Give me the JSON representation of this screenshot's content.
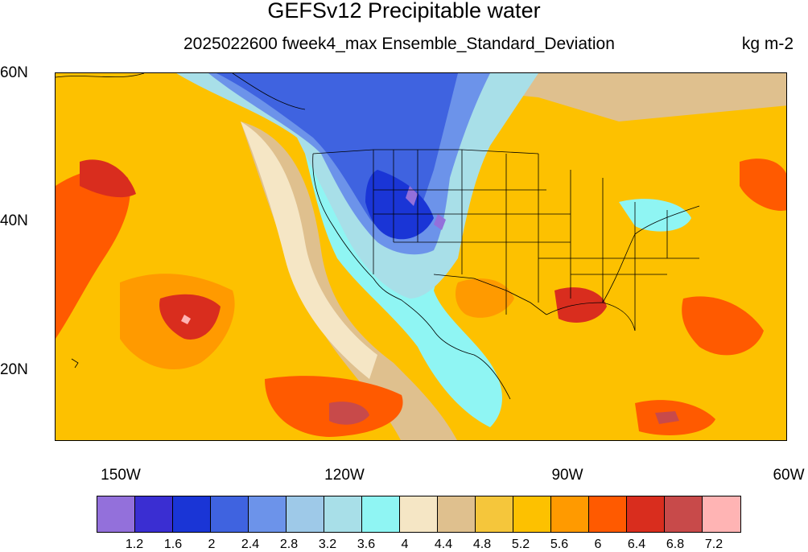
{
  "header": {
    "title": "GEFSv12 Precipitable water",
    "subtitle": "2025022600 fweek4_max Ensemble_Standard_Deviation",
    "units": "kg m-2"
  },
  "axes": {
    "lat_labels": [
      "60N",
      "40N",
      "20N"
    ],
    "lon_labels": [
      "150W",
      "120W",
      "90W",
      "60W"
    ]
  },
  "colorbar": {
    "colors": [
      "#9370db",
      "#3a2ed2",
      "#1a35d6",
      "#3f63e0",
      "#6c93ea",
      "#9ec9e8",
      "#a8dfe8",
      "#8ff5f3",
      "#f5e6c5",
      "#dfc08e",
      "#f5c63b",
      "#fdc100",
      "#ff9a00",
      "#ff5a00",
      "#d92d1e",
      "#c84a4a",
      "#ffb4b4"
    ],
    "labels": [
      "1.2",
      "1.6",
      "2",
      "2.4",
      "2.8",
      "3.2",
      "3.6",
      "4",
      "4.4",
      "4.8",
      "5.2",
      "5.6",
      "6",
      "6.4",
      "6.8",
      "7.2"
    ]
  }
}
